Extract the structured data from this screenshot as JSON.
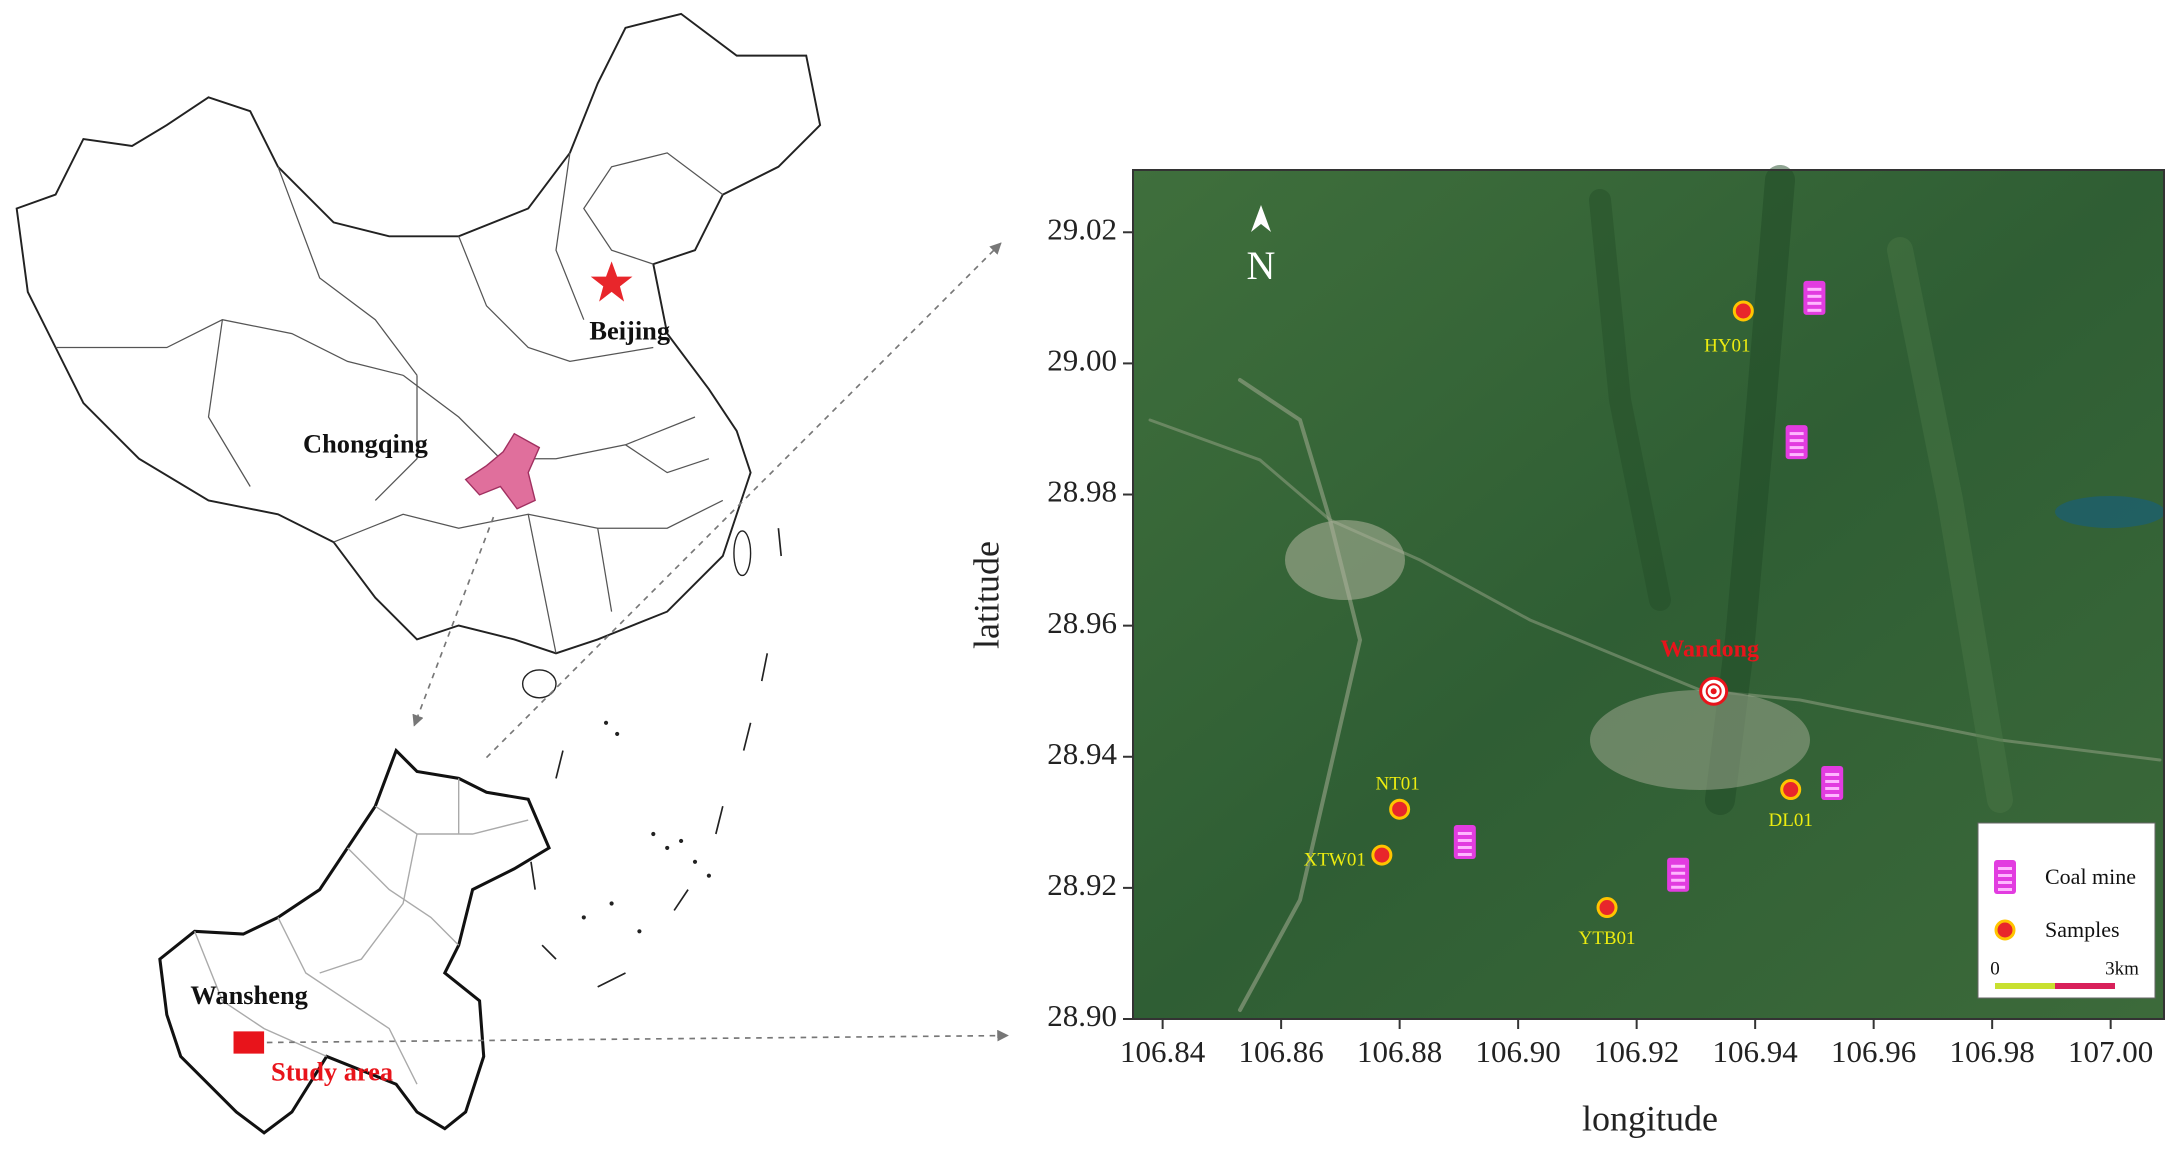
{
  "left_map": {
    "labels": {
      "beijing": "Beijing",
      "chongqing": "Chongqing",
      "wansheng": "Wansheng",
      "study_area": "Study area"
    }
  },
  "chart_data": {
    "type": "scatter",
    "x_label": "longitude",
    "y_label": "latitude",
    "xlim": [
      106.835,
      107.009
    ],
    "ylim": [
      28.9,
      29.0295
    ],
    "xticks": [
      106.84,
      106.86,
      106.88,
      {
        "value": 106.9,
        "label": "106.90"
      },
      106.92,
      106.94,
      106.96,
      106.98,
      {
        "value": 107,
        "label": "107.00"
      }
    ],
    "yticks": [
      {
        "value": 28.9,
        "label": "28.90"
      },
      28.92,
      28.94,
      28.96,
      28.98,
      {
        "value": 29,
        "label": "29.00"
      },
      29.02
    ],
    "series": [
      {
        "name": "Samples",
        "color": "#e8262b",
        "x": [
          106.938,
          106.88,
          106.877,
          106.915,
          106.946
        ],
        "values": [
          29.008,
          28.932,
          28.925,
          28.917,
          28.935
        ],
        "point_labels": [
          "HY01",
          "NT01",
          "XTW01",
          "YTB01",
          "DL01"
        ]
      },
      {
        "name": "Coal mine",
        "color": "#e23ce0",
        "x": [
          106.95,
          106.947,
          106.953,
          106.891,
          106.927
        ],
        "values": [
          29.01,
          28.988,
          28.936,
          28.927,
          28.922
        ]
      }
    ],
    "annotations": [
      {
        "text": "Wandong",
        "x": 106.933,
        "y": 28.95
      }
    ],
    "north_label": "N",
    "scale_bar": {
      "labels": [
        "0",
        "3km"
      ]
    },
    "legend": "lower right"
  }
}
